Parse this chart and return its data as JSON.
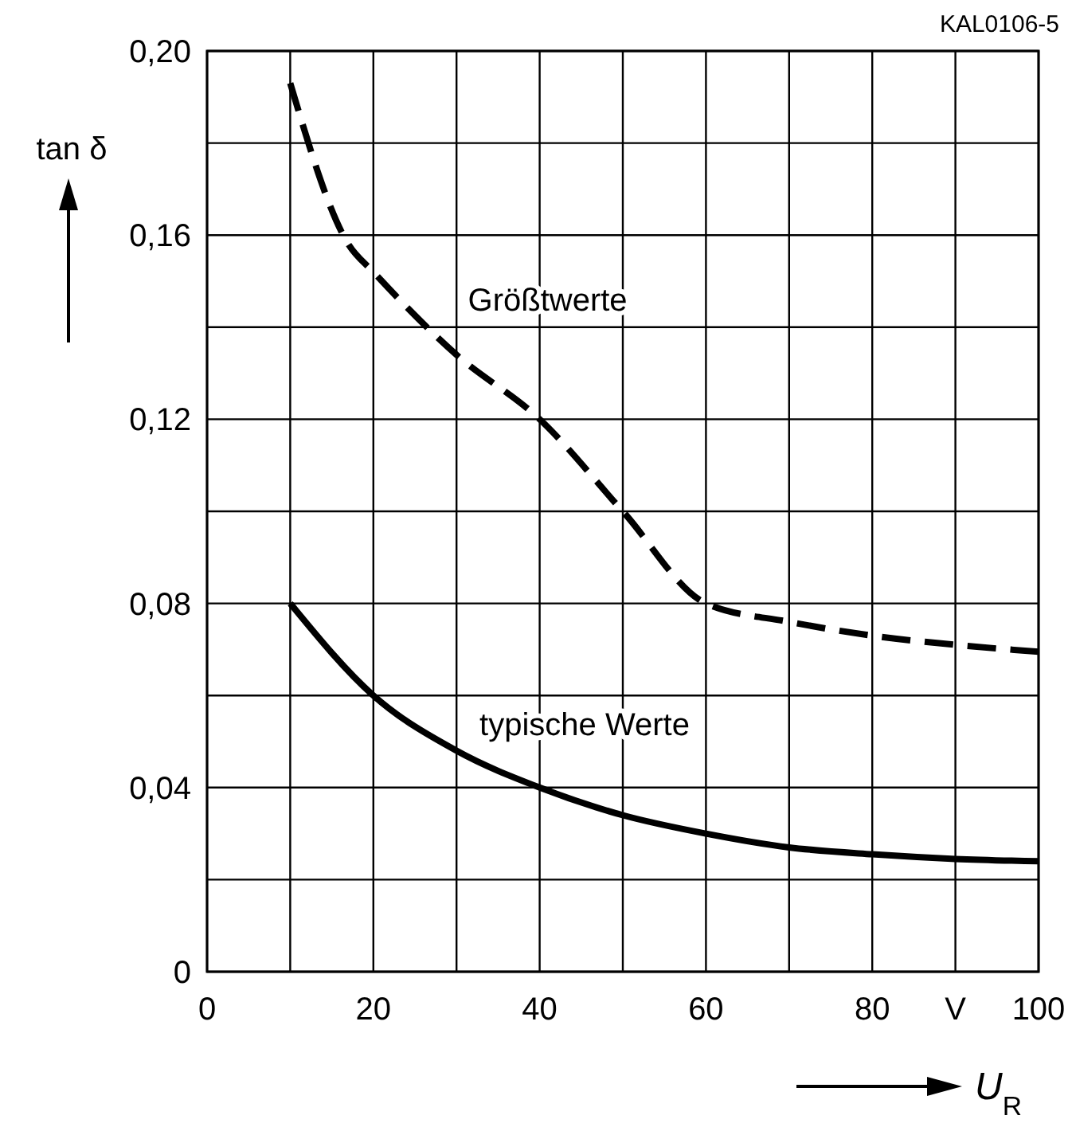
{
  "chart_data": {
    "type": "line",
    "xlabel": "U$_{R}$",
    "ylabel": "tan δ",
    "annotations": [
      "KAL0106-5"
    ],
    "x": [
      10,
      20,
      30,
      40,
      50,
      60,
      70,
      80,
      90,
      100
    ],
    "series": [
      {
        "name": "Größtwerte",
        "color": "#000000",
        "line_style": "dashed",
        "x": [
          10,
          17,
          20,
          30,
          40,
          50,
          60,
          70,
          80,
          90,
          100
        ],
        "values": [
          0.193,
          0.158,
          0.152,
          0.134,
          0.12,
          0.1,
          0.08,
          0.076,
          0.073,
          0.071,
          0.0695
        ]
      },
      {
        "name": "typische Werte",
        "color": "#000000",
        "line_style": "solid",
        "values": [
          0.08,
          0.06,
          0.048,
          0.04,
          0.034,
          0.03,
          0.027,
          0.0255,
          0.0245,
          0.024
        ]
      }
    ],
    "xlim": [
      0,
      100
    ],
    "xticks": [
      0,
      {
        "value": 10,
        "label": null
      },
      20,
      {
        "value": 30,
        "label": null
      },
      40,
      {
        "value": 50,
        "label": null
      },
      60,
      {
        "value": 70,
        "label": null
      },
      80,
      {
        "value": 90,
        "label": "V"
      },
      100
    ],
    "ylim": [
      0,
      0.2
    ],
    "yticks": [
      0,
      {
        "value": 0.02,
        "label": null
      },
      {
        "value": 0.04,
        "label": "0,04"
      },
      {
        "value": 0.06,
        "label": null
      },
      {
        "value": 0.08,
        "label": "0,08"
      },
      {
        "value": 0.1,
        "label": null
      },
      {
        "value": 0.12,
        "label": "0,12"
      },
      {
        "value": 0.14,
        "label": null
      },
      {
        "value": 0.16,
        "label": "0,16"
      },
      {
        "value": 0.18,
        "label": null
      },
      {
        "value": 0.2,
        "label": "0,20"
      }
    ],
    "grid": true,
    "marker": "none"
  }
}
